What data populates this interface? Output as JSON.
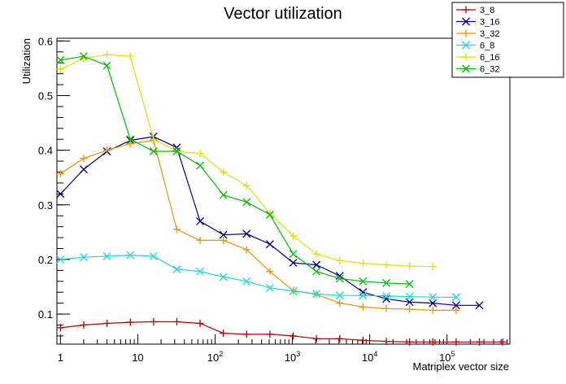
{
  "chart_data": {
    "type": "line",
    "title": "Vector utilization",
    "xlabel": "Matriplex vector size",
    "ylabel": "Utilization",
    "x_scale": "log",
    "xlim": [
      0.9,
      650000
    ],
    "ylim": [
      0.045,
      0.605
    ],
    "x_ticks": [
      {
        "value": 1,
        "label": "1"
      },
      {
        "value": 10,
        "label": "10"
      },
      {
        "value": 100,
        "label": "10",
        "sup": "2"
      },
      {
        "value": 1000,
        "label": "10",
        "sup": "3"
      },
      {
        "value": 10000,
        "label": "10",
        "sup": "4"
      },
      {
        "value": 100000,
        "label": "10",
        "sup": "5"
      }
    ],
    "y_ticks": [
      0.1,
      0.2,
      0.3,
      0.4,
      0.5,
      0.6
    ],
    "legend_position": "top-right",
    "grid": false,
    "series": [
      {
        "name": "3_8",
        "color": "#b00000",
        "marker": "plus",
        "x": [
          1,
          2,
          4,
          8,
          16,
          32,
          64,
          128,
          256,
          512,
          1024,
          2048,
          4096,
          8192,
          16384,
          32768,
          65536,
          131072,
          262144,
          524288
        ],
        "y": [
          0.075,
          0.08,
          0.083,
          0.085,
          0.086,
          0.086,
          0.083,
          0.065,
          0.063,
          0.063,
          0.06,
          0.055,
          0.055,
          0.052,
          0.05,
          0.049,
          0.049,
          0.049,
          0.049,
          0.049
        ]
      },
      {
        "name": "3_16",
        "color": "#00008b",
        "marker": "x",
        "x": [
          1,
          2,
          4,
          8,
          16,
          32,
          64,
          128,
          256,
          512,
          1024,
          2048,
          4096,
          8192,
          16384,
          32768,
          65536,
          131072,
          262144
        ],
        "y": [
          0.32,
          0.365,
          0.398,
          0.418,
          0.425,
          0.405,
          0.27,
          0.245,
          0.247,
          0.228,
          0.194,
          0.19,
          0.17,
          0.14,
          0.128,
          0.122,
          0.12,
          0.116,
          0.116
        ]
      },
      {
        "name": "3_32",
        "color": "#e69500",
        "marker": "plus",
        "x": [
          1,
          2,
          4,
          8,
          16,
          32,
          64,
          128,
          256,
          512,
          1024,
          2048,
          4096,
          8192,
          16384,
          32768,
          65536,
          131072
        ],
        "y": [
          0.357,
          0.385,
          0.4,
          0.412,
          0.418,
          0.255,
          0.235,
          0.235,
          0.218,
          0.178,
          0.143,
          0.136,
          0.12,
          0.113,
          0.11,
          0.109,
          0.107,
          0.107
        ]
      },
      {
        "name": "6_8",
        "color": "#1fd6d6",
        "marker": "x",
        "x": [
          1,
          2,
          4,
          8,
          16,
          32,
          64,
          128,
          256,
          512,
          1024,
          2048,
          4096,
          8192,
          16384,
          32768,
          65536,
          131072
        ],
        "y": [
          0.2,
          0.204,
          0.206,
          0.208,
          0.206,
          0.182,
          0.178,
          0.168,
          0.16,
          0.148,
          0.142,
          0.137,
          0.134,
          0.134,
          0.133,
          0.132,
          0.131,
          0.131
        ]
      },
      {
        "name": "6_16",
        "color": "#e0e000",
        "marker": "plus",
        "x": [
          1,
          2,
          4,
          8,
          16,
          32,
          64,
          128,
          256,
          512,
          1024,
          2048,
          4096,
          8192,
          16384,
          32768,
          65536
        ],
        "y": [
          0.548,
          0.568,
          0.575,
          0.572,
          0.42,
          0.398,
          0.394,
          0.36,
          0.335,
          0.285,
          0.243,
          0.21,
          0.198,
          0.193,
          0.19,
          0.188,
          0.187
        ]
      },
      {
        "name": "6_32",
        "color": "#00bb00",
        "marker": "x",
        "x": [
          1,
          2,
          4,
          8,
          16,
          32,
          64,
          128,
          256,
          512,
          1024,
          2048,
          4096,
          8192,
          16384,
          32768
        ],
        "y": [
          0.565,
          0.572,
          0.555,
          0.42,
          0.398,
          0.398,
          0.372,
          0.318,
          0.305,
          0.282,
          0.21,
          0.178,
          0.165,
          0.16,
          0.157,
          0.155
        ]
      }
    ]
  }
}
